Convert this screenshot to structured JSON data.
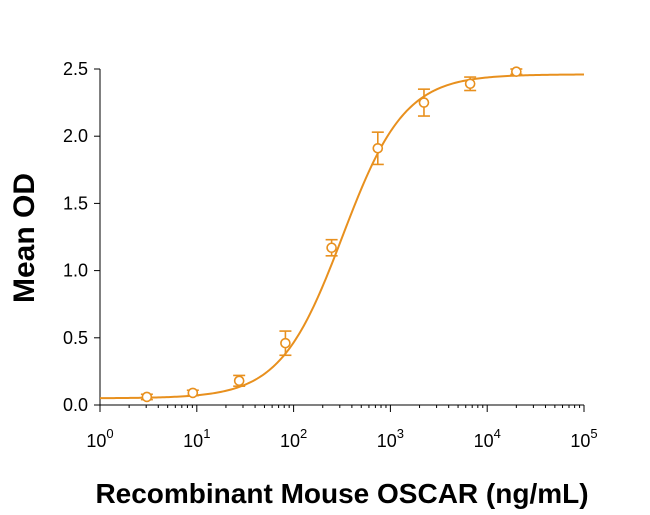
{
  "chart_data": {
    "type": "scatter",
    "xlabel": "Recombinant Mouse OSCAR (ng/mL)",
    "ylabel": "Mean OD",
    "xscale": "log",
    "xlim": [
      1,
      100000
    ],
    "ylim": [
      0,
      2.5
    ],
    "x_tick_labels": [
      {
        "base": "10",
        "exp": "0"
      },
      {
        "base": "10",
        "exp": "1"
      },
      {
        "base": "10",
        "exp": "2"
      },
      {
        "base": "10",
        "exp": "3"
      },
      {
        "base": "10",
        "exp": "4"
      },
      {
        "base": "10",
        "exp": "5"
      }
    ],
    "y_tick_labels": [
      "0.0",
      "0.5",
      "1.0",
      "1.5",
      "2.0",
      "2.5"
    ],
    "color": "#E8901E",
    "marker": "open-circle",
    "points": [
      {
        "x": 3.05,
        "y": 0.06,
        "err": 0.02
      },
      {
        "x": 9.1,
        "y": 0.09,
        "err": 0.02
      },
      {
        "x": 27.4,
        "y": 0.18,
        "err": 0.04
      },
      {
        "x": 82.3,
        "y": 0.46,
        "err": 0.09
      },
      {
        "x": 247,
        "y": 1.17,
        "err": 0.06
      },
      {
        "x": 741,
        "y": 1.91,
        "err": 0.12
      },
      {
        "x": 2222,
        "y": 2.25,
        "err": 0.1
      },
      {
        "x": 6667,
        "y": 2.39,
        "err": 0.05
      },
      {
        "x": 20000,
        "y": 2.48,
        "err": 0.02
      }
    ],
    "fit": {
      "model": "4PL",
      "bottom": 0.05,
      "top": 2.46,
      "ec50": 320,
      "hill": 1.35
    }
  }
}
